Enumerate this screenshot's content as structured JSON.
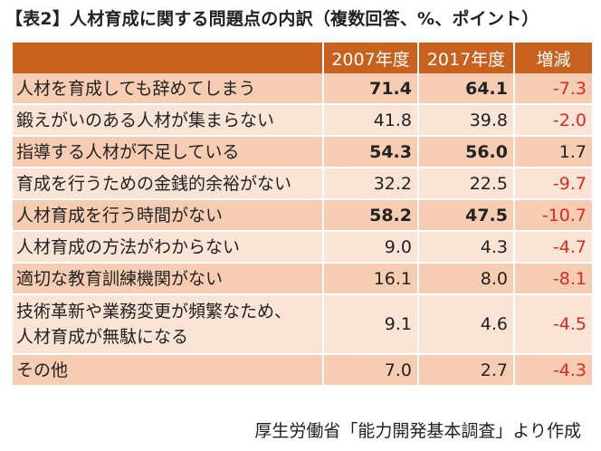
{
  "title": "【表2】人材育成に関する問題点の内訳（複数回答、%、ポイント）",
  "headers": [
    "",
    "2007年度",
    "2017年度",
    "増減"
  ],
  "rows": [
    {
      "label": "人材を育成しても辞めてしまう",
      "y2007": "71.4",
      "y2017": "64.1",
      "diff": "-7.3",
      "bold": true
    },
    {
      "label": "鍛えがいのある人材が集まらない",
      "y2007": "41.8",
      "y2017": "39.8",
      "diff": "-2.0",
      "bold": false
    },
    {
      "label": "指導する人材が不足している",
      "y2007": "54.3",
      "y2017": "56.0",
      "diff": "1.7",
      "bold": true
    },
    {
      "label": "育成を行うための金銭的余裕がない",
      "y2007": "32.2",
      "y2017": "22.5",
      "diff": "-9.7",
      "bold": false
    },
    {
      "label": "人材育成を行う時間がない",
      "y2007": "58.2",
      "y2017": "47.5",
      "diff": "-10.7",
      "bold": true
    },
    {
      "label": "人材育成の方法がわからない",
      "y2007": "9.0",
      "y2017": "4.3",
      "diff": "-4.7",
      "bold": false
    },
    {
      "label": "適切な教育訓練機関がない",
      "y2007": "16.1",
      "y2017": "8.0",
      "diff": "-8.1",
      "bold": false
    },
    {
      "label": "技術革新や業務変更が頻繁なため、人材育成が無駄になる",
      "label_line1": "技術革新や業務変更が頻繁なため、",
      "label_line2": "人材育成が無駄になる",
      "y2007": "9.1",
      "y2017": "4.6",
      "diff": "-4.5",
      "bold": false
    },
    {
      "label": "その他",
      "y2007": "7.0",
      "y2017": "2.7",
      "diff": "-4.3",
      "bold": false
    }
  ],
  "colors": {
    "header_bg": "#c8601e",
    "row_odd": "#f6cdb2",
    "row_even": "#fae4d6",
    "negative": "#e0281e"
  },
  "source": "厚生労働省「能力開発基本調査」より作成"
}
